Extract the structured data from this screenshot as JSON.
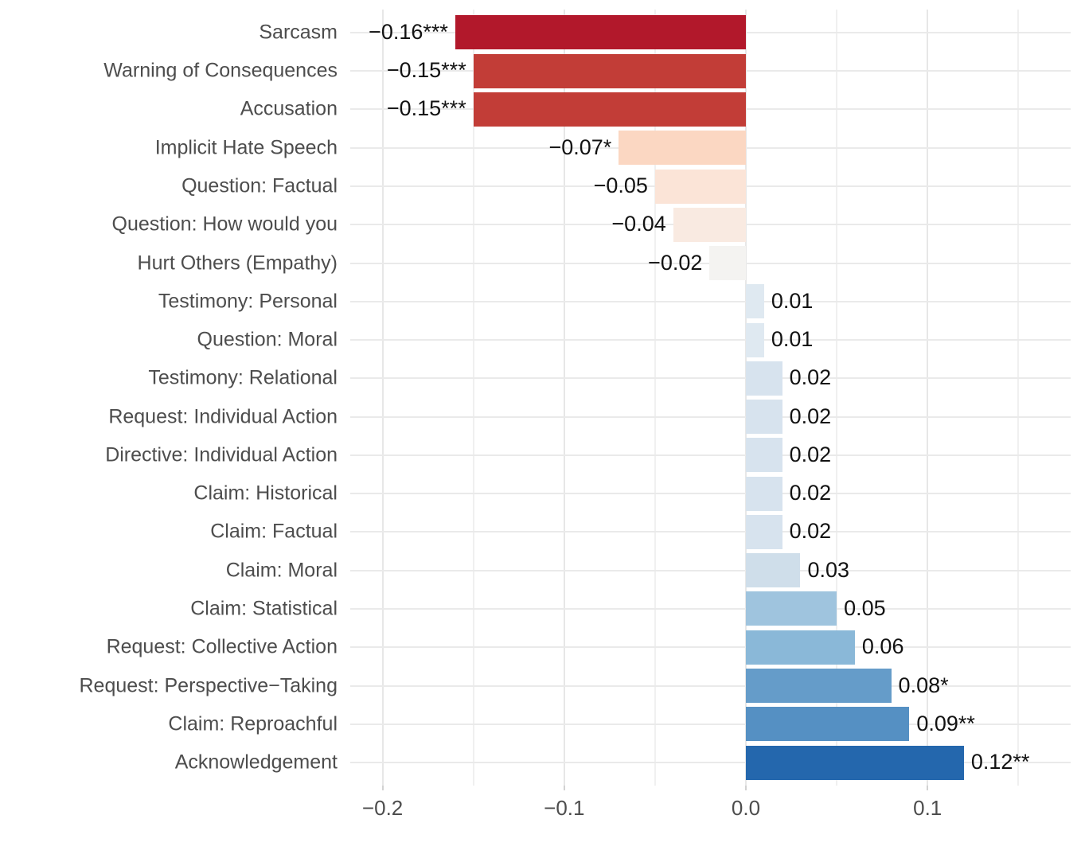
{
  "chart_data": {
    "type": "bar",
    "orientation": "horizontal",
    "title": "",
    "xlabel": "",
    "ylabel": "",
    "xlim": [
      -0.218,
      0.179
    ],
    "grid": true,
    "legend": false,
    "x_axis": {
      "major_ticks": [
        -0.2,
        -0.1,
        0.0,
        0.1
      ],
      "tick_labels": [
        "−0.2",
        "−0.1",
        "0.0",
        "0.1"
      ],
      "minor_ticks": [
        -0.15,
        -0.05,
        0.05,
        0.15
      ]
    },
    "bars": [
      {
        "category": "Sarcasm",
        "value": -0.16,
        "label": "−0.16***",
        "significance": "***",
        "color": "#b2182b"
      },
      {
        "category": "Warning of Consequences",
        "value": -0.15,
        "label": "−0.15***",
        "significance": "***",
        "color": "#c23d37"
      },
      {
        "category": "Accusation",
        "value": -0.15,
        "label": "−0.15***",
        "significance": "***",
        "color": "#c23d37"
      },
      {
        "category": "Implicit Hate Speech",
        "value": -0.07,
        "label": "−0.07*",
        "significance": "*",
        "color": "#fbd7c2"
      },
      {
        "category": "Question: Factual",
        "value": -0.05,
        "label": "−0.05",
        "significance": "",
        "color": "#fbe4d7"
      },
      {
        "category": "Question: How would you",
        "value": -0.04,
        "label": "−0.04",
        "significance": "",
        "color": "#f9eae1"
      },
      {
        "category": "Hurt Others (Empathy)",
        "value": -0.02,
        "label": "−0.02",
        "significance": "",
        "color": "#f4f3f1"
      },
      {
        "category": "Testimony: Personal",
        "value": 0.01,
        "label": "0.01",
        "significance": "",
        "color": "#dfe9f1"
      },
      {
        "category": "Question: Moral",
        "value": 0.01,
        "label": "0.01",
        "significance": "",
        "color": "#dfe9f1"
      },
      {
        "category": "Testimony: Relational",
        "value": 0.02,
        "label": "0.02",
        "significance": "",
        "color": "#d7e3ee"
      },
      {
        "category": "Request: Individual Action",
        "value": 0.02,
        "label": "0.02",
        "significance": "",
        "color": "#d7e3ee"
      },
      {
        "category": "Directive: Individual Action",
        "value": 0.02,
        "label": "0.02",
        "significance": "",
        "color": "#d7e3ee"
      },
      {
        "category": "Claim: Historical",
        "value": 0.02,
        "label": "0.02",
        "significance": "",
        "color": "#d7e3ee"
      },
      {
        "category": "Claim: Factual",
        "value": 0.02,
        "label": "0.02",
        "significance": "",
        "color": "#d7e3ee"
      },
      {
        "category": "Claim: Moral",
        "value": 0.03,
        "label": "0.03",
        "significance": "",
        "color": "#cfdeea"
      },
      {
        "category": "Claim: Statistical",
        "value": 0.05,
        "label": "0.05",
        "significance": "",
        "color": "#9fc4de"
      },
      {
        "category": "Request: Collective Action",
        "value": 0.06,
        "label": "0.06",
        "significance": "",
        "color": "#8ab8d8"
      },
      {
        "category": "Request: Perspective−Taking",
        "value": 0.08,
        "label": "0.08*",
        "significance": "*",
        "color": "#659cc9"
      },
      {
        "category": "Claim: Reproachful",
        "value": 0.09,
        "label": "0.09**",
        "significance": "**",
        "color": "#5590c3"
      },
      {
        "category": "Acknowledgement",
        "value": 0.12,
        "label": "0.12**",
        "significance": "**",
        "color": "#2467ad"
      }
    ],
    "colors": {
      "background": "#ffffff",
      "grid_major": "#e7e7e7",
      "grid_minor": "#f0f0f0",
      "row_grid": "#eaeaea",
      "tick_mark": "#d2d2d2",
      "axis_text": "#4d4d4d",
      "category_text": "#4d4d4d",
      "value_text": "#121212",
      "negative_end": "#b2182b",
      "positive_end": "#2166ac"
    }
  }
}
